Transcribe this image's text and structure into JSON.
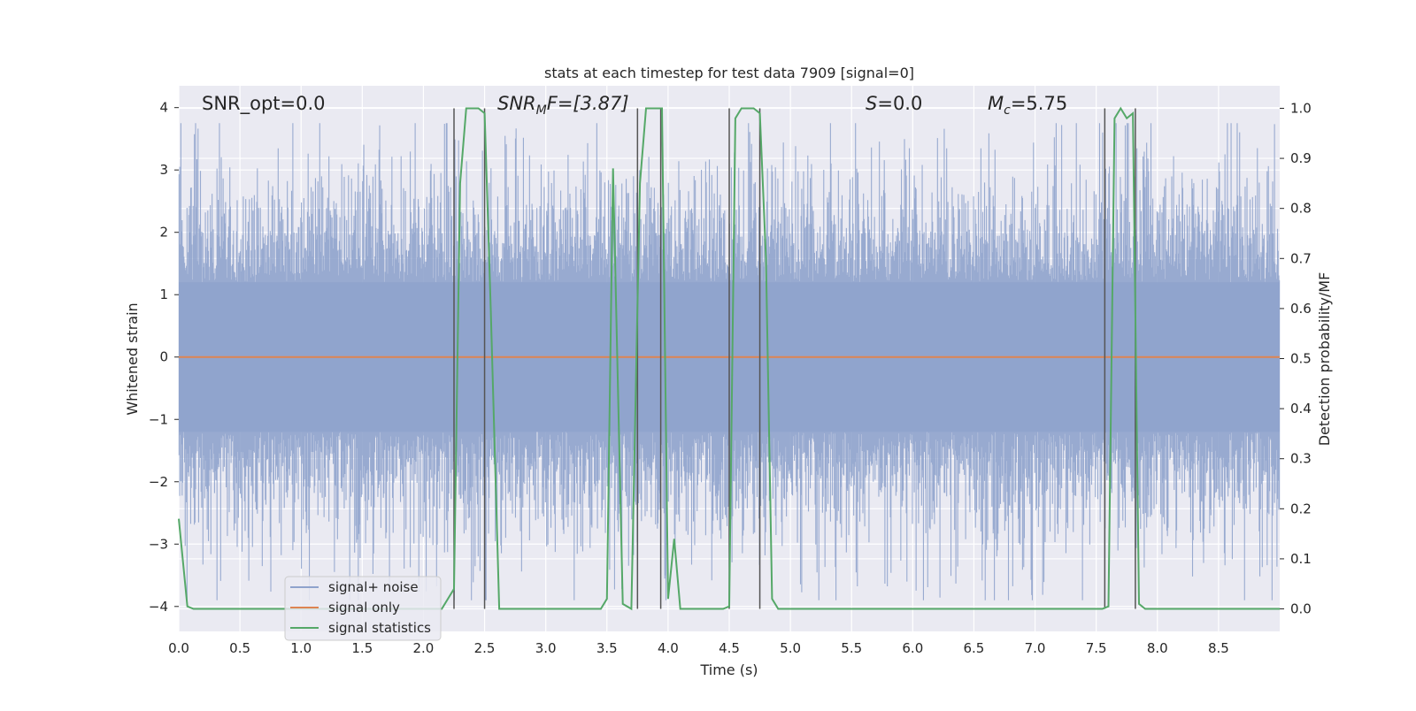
{
  "chart_data": {
    "type": "line",
    "title": "stats at each timestep for test data 7909 [signal=0]",
    "xlabel": "Time (s)",
    "ylabel": "Whitened strain",
    "y2label": "Detection probability/MF",
    "xlim": [
      0,
      9.0
    ],
    "ylim": [
      -4.4,
      4.35
    ],
    "y2lim": [
      -0.045,
      1.045
    ],
    "x_ticks": [
      "0.0",
      "0.5",
      "1.0",
      "1.5",
      "2.0",
      "2.5",
      "3.0",
      "3.5",
      "4.0",
      "4.5",
      "5.0",
      "5.5",
      "6.0",
      "6.5",
      "7.0",
      "7.5",
      "8.0",
      "8.5"
    ],
    "y_ticks": [
      "−4",
      "−3",
      "−2",
      "−1",
      "0",
      "1",
      "2",
      "3",
      "4"
    ],
    "y2_ticks": [
      "0.0",
      "0.1",
      "0.2",
      "0.3",
      "0.4",
      "0.5",
      "0.6",
      "0.7",
      "0.8",
      "0.9",
      "1.0"
    ],
    "grid": true,
    "legend_position": "lower-left",
    "annotations": {
      "snr_opt": "SNR_opt=0.0",
      "snr_mf_base": "SNR",
      "snr_mf_sub": "M",
      "snr_mf_rest": "F=[3.87]",
      "s_italic": "S",
      "s_rest": "=0.0",
      "mc_base": "M",
      "mc_sub": "c",
      "mc_rest": "=5.75"
    },
    "series": [
      {
        "name": "signal+ noise",
        "color": "#8fa3cc",
        "description_values": "whitened strain noise, dense, amplitude mostly within [-2.5, 2.5] with spikes to about ±3.7"
      },
      {
        "name": "signal only",
        "color": "#dd8452",
        "values_constant": 0
      },
      {
        "name": "signal statistics",
        "color": "#55a868",
        "axis": "right",
        "x": [
          0.0,
          0.07,
          0.12,
          0.2,
          2.15,
          2.25,
          2.3,
          2.35,
          2.45,
          2.5,
          2.55,
          2.62,
          3.45,
          3.5,
          3.55,
          3.63,
          3.7,
          3.77,
          3.82,
          3.95,
          4.0,
          4.05,
          4.1,
          4.45,
          4.5,
          4.55,
          4.6,
          4.7,
          4.75,
          4.8,
          4.85,
          4.9,
          7.55,
          7.6,
          7.65,
          7.7,
          7.75,
          7.8,
          7.85,
          7.9,
          9.0
        ],
        "y": [
          0.18,
          0.005,
          0.0,
          0.0,
          0.0,
          0.04,
          0.85,
          1.0,
          1.0,
          0.99,
          0.6,
          0.0,
          0.0,
          0.02,
          0.88,
          0.01,
          0.0,
          0.85,
          1.0,
          1.0,
          0.02,
          0.14,
          0.0,
          0.0,
          0.005,
          0.98,
          1.0,
          1.0,
          0.99,
          0.7,
          0.02,
          0.0,
          0.0,
          0.005,
          0.98,
          1.0,
          0.98,
          0.99,
          0.01,
          0.0,
          0.0
        ]
      }
    ],
    "vlines": [
      {
        "x": 2.25,
        "y2": [
          0.0,
          1.0
        ]
      },
      {
        "x": 2.5,
        "y2": [
          0.0,
          1.0
        ]
      },
      {
        "x": 3.75,
        "y2": [
          0.0,
          1.0
        ]
      },
      {
        "x": 3.94,
        "y2": [
          0.0,
          1.0
        ]
      },
      {
        "x": 4.5,
        "y2": [
          0.0,
          1.0
        ]
      },
      {
        "x": 4.75,
        "y2": [
          0.0,
          1.0
        ]
      },
      {
        "x": 7.57,
        "y2": [
          0.0,
          1.0
        ]
      },
      {
        "x": 7.82,
        "y2": [
          0.0,
          1.0
        ]
      }
    ],
    "colors": {
      "background": "#eaeaf2",
      "grid": "#ffffff",
      "vline": "#555555"
    }
  }
}
